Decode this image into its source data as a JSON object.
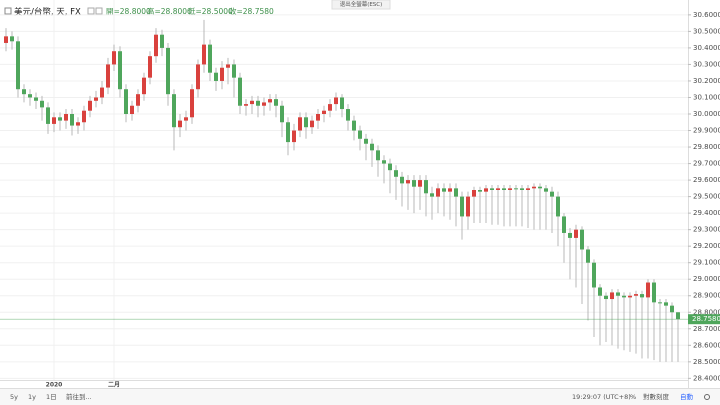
{
  "header": {
    "symbol": "美元/台幣, 天, FX",
    "ohlc": [
      "開=28.8000",
      "高=28.8000",
      "低=28.5000",
      "收=28.7580"
    ],
    "exit_fullscreen": "退出全螢幕(ESC)"
  },
  "toolbar": {
    "left": [
      "5y",
      "1y",
      "1日",
      "前往到..."
    ],
    "right": [
      "19:29:07 (UTC+8)",
      "%",
      "對數刻度",
      "自動"
    ]
  },
  "chart_data": {
    "type": "candlestick",
    "up_color": "#d9413d",
    "down_color": "#4fa65c",
    "wick_color": "#a8a8a8",
    "grid": true,
    "price_line_label": "28.7580",
    "categories": [
      null,
      null,
      null,
      null,
      null,
      null,
      null,
      null,
      "2020",
      null,
      null,
      null,
      null,
      null,
      null,
      null,
      null,
      null,
      "二月",
      null,
      null,
      null,
      null,
      null,
      null,
      null,
      null,
      null,
      null,
      null,
      null,
      null,
      null,
      null,
      null,
      null,
      null,
      null,
      null,
      null,
      null,
      null,
      null,
      null,
      null,
      null,
      null,
      null,
      null,
      null,
      null,
      null,
      null,
      null,
      null,
      null,
      null,
      null,
      null,
      null,
      null,
      null,
      null,
      null,
      null,
      null,
      null,
      null,
      null,
      null,
      null,
      null,
      null,
      null,
      null,
      null,
      null,
      null,
      null,
      null,
      null,
      null,
      null,
      null,
      null,
      null,
      null,
      null,
      null,
      null,
      null,
      null,
      null,
      null,
      null,
      null,
      null,
      null,
      null,
      null,
      null,
      null,
      null,
      null,
      null,
      null,
      null,
      null,
      null,
      null,
      null,
      null,
      null
    ],
    "open": [
      30.43,
      30.47,
      30.44,
      30.15,
      30.12,
      30.1,
      30.08,
      30.04,
      29.94,
      29.98,
      29.96,
      30.0,
      29.93,
      29.95,
      30.02,
      30.08,
      30.1,
      30.16,
      30.3,
      30.38,
      30.15,
      30.0,
      30.05,
      30.12,
      30.22,
      30.35,
      30.48,
      30.4,
      30.12,
      29.92,
      29.96,
      29.98,
      30.15,
      30.3,
      30.42,
      30.25,
      30.2,
      30.28,
      30.3,
      30.22,
      30.05,
      30.06,
      30.08,
      30.05,
      30.07,
      30.09,
      30.05,
      29.95,
      29.83,
      29.9,
      29.98,
      29.92,
      29.96,
      30.0,
      30.02,
      30.06,
      30.1,
      30.03,
      29.96,
      29.9,
      29.85,
      29.82,
      29.78,
      29.72,
      29.7,
      29.66,
      29.62,
      29.58,
      29.6,
      29.56,
      29.6,
      29.52,
      29.5,
      29.55,
      29.53,
      29.55,
      29.5,
      29.38,
      29.5,
      29.54,
      29.53,
      29.55,
      29.54,
      29.55,
      29.54,
      29.55,
      29.55,
      29.54,
      29.55,
      29.56,
      29.55,
      29.53,
      29.5,
      29.38,
      29.28,
      29.25,
      29.3,
      29.18,
      29.1,
      28.95,
      28.9,
      28.88,
      28.92,
      28.9,
      28.89,
      28.9,
      28.91,
      28.89,
      28.98,
      28.86,
      28.86,
      28.84,
      28.8
    ],
    "high": [
      30.52,
      30.5,
      30.47,
      30.18,
      30.15,
      30.13,
      30.11,
      30.07,
      30.01,
      30.01,
      30.03,
      30.03,
      29.98,
      30.05,
      30.11,
      30.14,
      30.2,
      30.34,
      30.42,
      30.41,
      30.18,
      30.08,
      30.15,
      30.25,
      30.38,
      30.52,
      30.51,
      30.43,
      30.15,
      30.0,
      30.02,
      30.18,
      30.33,
      30.57,
      30.45,
      30.28,
      30.32,
      30.34,
      30.33,
      30.25,
      30.09,
      30.11,
      30.11,
      30.1,
      30.12,
      30.12,
      30.08,
      29.98,
      29.94,
      30.01,
      30.01,
      29.99,
      30.03,
      30.05,
      30.09,
      30.13,
      30.12,
      30.06,
      29.99,
      29.93,
      29.88,
      29.85,
      29.81,
      29.75,
      29.73,
      29.69,
      29.65,
      29.63,
      29.63,
      29.63,
      29.63,
      29.56,
      29.58,
      29.58,
      29.58,
      29.58,
      29.53,
      29.53,
      29.56,
      29.56,
      29.57,
      29.57,
      29.57,
      29.57,
      29.57,
      29.57,
      29.57,
      29.57,
      29.58,
      29.58,
      29.57,
      29.56,
      29.53,
      29.4,
      29.31,
      29.33,
      29.32,
      29.2,
      29.12,
      28.97,
      28.92,
      28.94,
      28.94,
      28.92,
      28.92,
      28.93,
      28.93,
      29.0,
      29.0,
      28.88,
      28.88,
      28.86,
      28.8
    ],
    "low": [
      30.38,
      30.39,
      30.1,
      30.07,
      30.05,
      30.03,
      29.96,
      29.88,
      29.89,
      29.9,
      29.91,
      29.87,
      29.88,
      29.9,
      29.98,
      30.04,
      30.06,
      30.12,
      30.26,
      30.1,
      29.95,
      29.96,
      30.01,
      30.08,
      30.18,
      30.31,
      30.35,
      30.05,
      29.78,
      29.86,
      29.9,
      29.94,
      30.1,
      30.25,
      30.2,
      30.14,
      30.15,
      30.18,
      30.1,
      30.0,
      29.99,
      30.0,
      29.98,
      29.99,
      30.02,
      29.98,
      29.86,
      29.75,
      29.78,
      29.86,
      29.85,
      29.88,
      29.91,
      29.95,
      29.98,
      30.02,
      29.98,
      29.9,
      29.84,
      29.78,
      29.72,
      29.68,
      29.62,
      29.58,
      29.52,
      29.48,
      29.44,
      29.42,
      29.4,
      29.42,
      29.38,
      29.36,
      29.4,
      29.38,
      29.36,
      29.32,
      29.24,
      29.3,
      29.34,
      29.34,
      29.34,
      29.33,
      29.33,
      29.32,
      29.32,
      29.32,
      29.32,
      29.31,
      29.3,
      29.3,
      29.3,
      29.28,
      29.2,
      29.1,
      29.0,
      28.95,
      28.85,
      28.75,
      28.65,
      28.6,
      28.62,
      28.6,
      28.58,
      28.57,
      28.56,
      28.55,
      28.52,
      28.52,
      28.51,
      28.5,
      28.5,
      28.5,
      28.5
    ],
    "close": [
      30.47,
      30.44,
      30.15,
      30.12,
      30.1,
      30.08,
      30.04,
      29.94,
      29.98,
      29.96,
      30.0,
      29.93,
      29.95,
      30.02,
      30.08,
      30.1,
      30.16,
      30.3,
      30.38,
      30.15,
      30.0,
      30.05,
      30.12,
      30.22,
      30.35,
      30.48,
      30.4,
      30.12,
      29.92,
      29.96,
      29.98,
      30.15,
      30.3,
      30.42,
      30.25,
      30.2,
      30.28,
      30.3,
      30.22,
      30.05,
      30.06,
      30.08,
      30.05,
      30.07,
      30.09,
      30.05,
      29.95,
      29.83,
      29.9,
      29.98,
      29.92,
      29.96,
      30.0,
      30.02,
      30.06,
      30.1,
      30.03,
      29.96,
      29.9,
      29.85,
      29.82,
      29.78,
      29.72,
      29.7,
      29.66,
      29.62,
      29.58,
      29.6,
      29.56,
      29.6,
      29.52,
      29.5,
      29.55,
      29.53,
      29.55,
      29.5,
      29.38,
      29.5,
      29.54,
      29.53,
      29.55,
      29.54,
      29.55,
      29.54,
      29.55,
      29.55,
      29.54,
      29.55,
      29.56,
      29.55,
      29.53,
      29.5,
      29.38,
      29.28,
      29.25,
      29.3,
      29.18,
      29.1,
      28.95,
      28.9,
      28.88,
      28.92,
      28.9,
      28.89,
      28.9,
      28.91,
      28.89,
      28.98,
      28.86,
      28.86,
      28.84,
      28.8,
      28.758
    ],
    "ylim": [
      28.39,
      30.69
    ],
    "yticks": [
      {
        "value": 30.6,
        "label": "30.6000"
      },
      {
        "value": 30.5,
        "label": "30.5000"
      },
      {
        "value": 30.4,
        "label": "30.4000"
      },
      {
        "value": 30.3,
        "label": "30.3000"
      },
      {
        "value": 30.2,
        "label": "30.2000"
      },
      {
        "value": 30.1,
        "label": "30.1000"
      },
      {
        "value": 30.0,
        "label": "30.0000"
      },
      {
        "value": 29.9,
        "label": "29.9000"
      },
      {
        "value": 29.8,
        "label": "29.8000"
      },
      {
        "value": 29.7,
        "label": "29.7000"
      },
      {
        "value": 29.6,
        "label": "29.6000"
      },
      {
        "value": 29.5,
        "label": "29.5000"
      },
      {
        "value": 29.4,
        "label": "29.4000"
      },
      {
        "value": 29.3,
        "label": "29.3000"
      },
      {
        "value": 29.2,
        "label": "29.2000"
      },
      {
        "value": 29.1,
        "label": "29.1000"
      },
      {
        "value": 29.0,
        "label": "29.0000"
      },
      {
        "value": 28.9,
        "label": "28.9000"
      },
      {
        "value": 28.8,
        "label": "28.8000"
      },
      {
        "value": 28.7,
        "label": "28.7000"
      },
      {
        "value": 28.6,
        "label": "28.6000"
      },
      {
        "value": 28.5,
        "label": "28.5000"
      },
      {
        "value": 28.4,
        "label": "28.4000"
      }
    ]
  }
}
